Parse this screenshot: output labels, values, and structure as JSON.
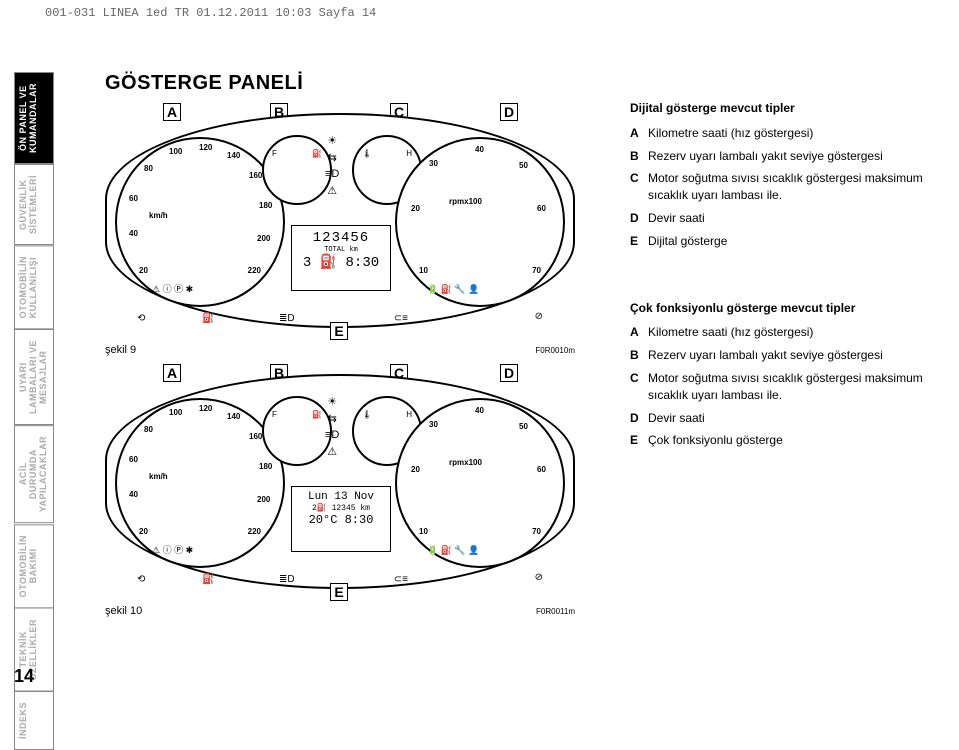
{
  "header": "001-031 LINEA 1ed TR  01.12.2011  10:03  Sayfa 14",
  "pagenum": "14",
  "tabs": [
    {
      "label": "ÖN PANEL VE\nKUMANDALAR",
      "active": true
    },
    {
      "label": "GÜVENLİK\nSİSTEMLERİ",
      "active": false
    },
    {
      "label": "OTOMOBİLİN\nKULLANILIŞI",
      "active": false
    },
    {
      "label": "UYARI\nLAMBALARI VE\nMESAJLAR",
      "active": false
    },
    {
      "label": "ACİL\nDURUMDA\nYAPILACAKLAR",
      "active": false
    },
    {
      "label": "OTOMOBİLİN\nBAKIMI",
      "active": false
    },
    {
      "label": "TEKNİK\nÖZELLİKLER",
      "active": false
    },
    {
      "label": "İNDEKS",
      "active": false
    }
  ],
  "title": "GÖSTERGE PANELİ",
  "cluster1": {
    "caption": "şekil 9",
    "figref": "F0R0010m",
    "pointers": {
      "A": "A",
      "B": "B",
      "C": "C",
      "D": "D",
      "E": "E"
    },
    "speedo": {
      "unit": "km/h",
      "ticks": [
        "20",
        "40",
        "60",
        "80",
        "100",
        "120",
        "140",
        "160",
        "180",
        "200",
        "220"
      ]
    },
    "tacho": {
      "unit": "rpmx100",
      "ticks": [
        "10",
        "20",
        "30",
        "40",
        "50",
        "60",
        "70"
      ]
    },
    "display": {
      "line1": "123456",
      "line2": "TOTAL   km",
      "line3": "3 ⛽  8:30"
    }
  },
  "cluster2": {
    "caption": "şekil 10",
    "figref": "F0R0011m",
    "pointers": {
      "A": "A",
      "B": "B",
      "C": "C",
      "D": "D",
      "E": "E"
    },
    "speedo": {
      "unit": "km/h",
      "ticks": [
        "20",
        "40",
        "60",
        "80",
        "100",
        "120",
        "140",
        "160",
        "180",
        "200",
        "220"
      ]
    },
    "tacho": {
      "unit": "rpmx100",
      "ticks": [
        "10",
        "20",
        "30",
        "40",
        "50",
        "60",
        "70"
      ]
    },
    "display": {
      "line1": "Lun 13 Nov",
      "line2": "2⛽   12345 km",
      "line3": "20°C  8:30"
    }
  },
  "section1": {
    "heading": "Dijital gösterge mevcut tipler",
    "items": [
      {
        "l": "A",
        "t": "Kilometre saati (hız göstergesi)"
      },
      {
        "l": "B",
        "t": "Rezerv uyarı lambalı yakıt seviye göstergesi"
      },
      {
        "l": "C",
        "t": "Motor soğutma sıvısı sıcaklık göstergesi maksimum sıcaklık uyarı lambası ile."
      },
      {
        "l": "D",
        "t": "Devir saati"
      },
      {
        "l": "E",
        "t": "Dijital gösterge"
      }
    ]
  },
  "section2": {
    "heading": "Çok fonksiyonlu gösterge mevcut tipler",
    "items": [
      {
        "l": "A",
        "t": "Kilometre saati (hız göstergesi)"
      },
      {
        "l": "B",
        "t": "Rezerv uyarı lambalı yakıt seviye göstergesi"
      },
      {
        "l": "C",
        "t": "Motor soğutma sıvısı sıcaklık göstergesi maksimum sıcaklık uyarı lambası ile."
      },
      {
        "l": "D",
        "t": "Devir saati"
      },
      {
        "l": "E",
        "t": "Çok fonksiyonlu gösterge"
      }
    ]
  }
}
